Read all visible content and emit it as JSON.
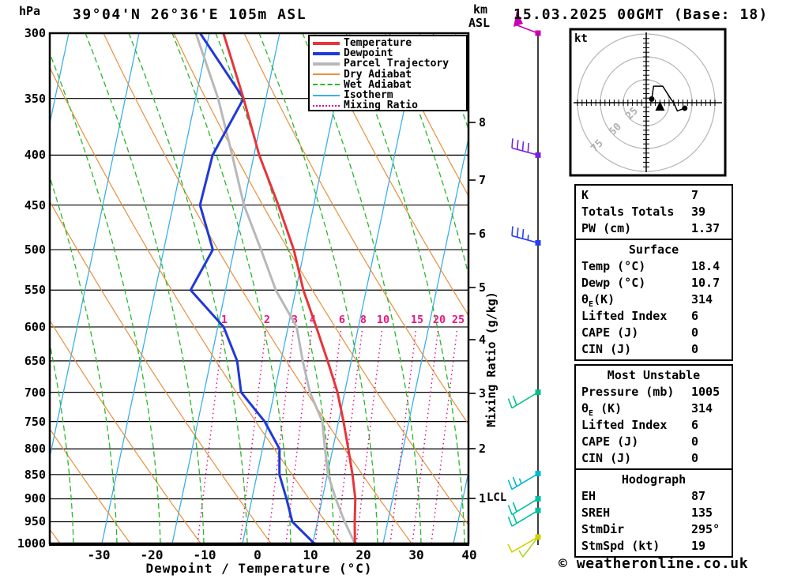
{
  "header": {
    "y_unit": "hPa",
    "title": "39°04'N 26°36'E 105m ASL",
    "datetime": "15.03.2025 00GMT (Base: 18)",
    "km_label": "km",
    "asl_label": "ASL"
  },
  "copyright": "© weatheronline.co.uk",
  "legend": {
    "items": [
      {
        "label": "Temperature",
        "color": "#e8343a",
        "glyph": "solid-thick"
      },
      {
        "label": "Dewpoint",
        "color": "#2038d8",
        "glyph": "solid-thick"
      },
      {
        "label": "Parcel Trajectory",
        "color": "#b8b8b8",
        "glyph": "solid-thick"
      },
      {
        "label": "Dry Adiabat",
        "color": "#e8903c",
        "glyph": "solid-thin"
      },
      {
        "label": "Wet Adiabat",
        "color": "#28b828",
        "glyph": "dashed"
      },
      {
        "label": "Isotherm",
        "color": "#3cb0e8",
        "glyph": "solid-thin"
      },
      {
        "label": "Mixing Ratio",
        "color": "#e00080",
        "glyph": "dotted"
      }
    ]
  },
  "axes": {
    "pressure_ticks": [
      300,
      350,
      400,
      450,
      500,
      550,
      600,
      650,
      700,
      750,
      800,
      850,
      900,
      950,
      1000
    ],
    "temp_ticks": [
      -30,
      -20,
      -10,
      0,
      10,
      20,
      30,
      40
    ],
    "x_label": "Dewpoint / Temperature (°C)",
    "km_ticks": [
      8,
      7,
      6,
      5,
      4,
      3,
      2,
      1
    ],
    "mix_axis_label": "Mixing Ratio (g/kg)",
    "mixing_ratio_values": [
      1,
      2,
      3,
      4,
      6,
      8,
      10,
      15,
      20,
      25
    ],
    "lcl_label": "LCL"
  },
  "chart_data": {
    "type": "line",
    "title": "Skew-T log-P sounding",
    "x_unit": "°C",
    "y_unit": "hPa",
    "y_range": [
      300,
      1000
    ],
    "x_range_at_surface": [
      -40,
      40
    ],
    "lcl_km": 1,
    "series": [
      {
        "name": "Temperature",
        "color": "#e8343a",
        "width": 3,
        "points": [
          [
            300,
            -26.7
          ],
          [
            350,
            -20.3
          ],
          [
            400,
            -15.1
          ],
          [
            450,
            -9.5
          ],
          [
            500,
            -4.8
          ],
          [
            550,
            -1.4
          ],
          [
            600,
            2.5
          ],
          [
            650,
            6.0
          ],
          [
            700,
            9.1
          ],
          [
            750,
            11.4
          ],
          [
            800,
            13.4
          ],
          [
            850,
            15.2
          ],
          [
            900,
            16.7
          ],
          [
            950,
            17.5
          ],
          [
            1000,
            18.4
          ]
        ]
      },
      {
        "name": "Dewpoint",
        "color": "#2038d8",
        "width": 3,
        "points": [
          [
            300,
            -31.1
          ],
          [
            350,
            -20.3
          ],
          [
            400,
            -23.9
          ],
          [
            450,
            -24.3
          ],
          [
            500,
            -20.1
          ],
          [
            550,
            -22.7
          ],
          [
            600,
            -15.0
          ],
          [
            650,
            -11.1
          ],
          [
            700,
            -9.1
          ],
          [
            750,
            -3.5
          ],
          [
            800,
            0.4
          ],
          [
            850,
            1.4
          ],
          [
            900,
            3.7
          ],
          [
            950,
            5.7
          ],
          [
            1000,
            10.7
          ]
        ]
      },
      {
        "name": "Parcel Trajectory",
        "color": "#b8b8b8",
        "width": 3,
        "points": [
          [
            300,
            -31.9
          ],
          [
            350,
            -25.1
          ],
          [
            400,
            -20.2
          ],
          [
            450,
            -16.0
          ],
          [
            500,
            -11.0
          ],
          [
            550,
            -6.6
          ],
          [
            600,
            -1.2
          ],
          [
            650,
            1.3
          ],
          [
            700,
            3.9
          ],
          [
            750,
            7.4
          ],
          [
            800,
            9.0
          ],
          [
            850,
            10.6
          ],
          [
            900,
            13.0
          ],
          [
            950,
            15.6
          ],
          [
            1000,
            18.4
          ]
        ]
      }
    ]
  },
  "wind_barbs": [
    {
      "pressure": 300,
      "type": "flag50",
      "color": "#c800b4"
    },
    {
      "pressure": 400,
      "type": "barb",
      "full": 4,
      "half": 0,
      "below": false,
      "color": "#7820e0"
    },
    {
      "pressure": 492,
      "type": "barb",
      "full": 3,
      "half": 1,
      "below": false,
      "color": "#2840f0"
    },
    {
      "pressure": 700,
      "type": "barb",
      "full": 2,
      "half": 0,
      "below": true,
      "color": "#00c08c"
    },
    {
      "pressure": 848,
      "type": "barb",
      "full": 2,
      "half": 1,
      "below": true,
      "color": "#00b8d0"
    },
    {
      "pressure": 900,
      "type": "barb",
      "full": 2,
      "half": 0,
      "below": true,
      "color": "#00c0a0"
    },
    {
      "pressure": 925,
      "type": "barb",
      "full": 2,
      "half": 0,
      "below": true,
      "color": "#00c0a0"
    },
    {
      "pressure": 985,
      "type": "double",
      "colors": [
        "#d0d000",
        "#a8d820"
      ]
    }
  ],
  "hodograph": {
    "unit_label": "kt",
    "rings_kt": [
      25,
      50,
      75
    ],
    "trace_uv_kt": [
      [
        6,
        4
      ],
      [
        8,
        18
      ],
      [
        18,
        18
      ],
      [
        27,
        4
      ],
      [
        30,
        0
      ],
      [
        34,
        -9
      ],
      [
        42,
        -6
      ]
    ],
    "endpoint_dots_uv_kt": [
      [
        6,
        4
      ],
      [
        42,
        -6
      ]
    ],
    "storm_motion_uv_kt": [
      15,
      -4
    ]
  },
  "info_boxes": [
    {
      "title": null,
      "rows": [
        [
          "K",
          "7"
        ],
        [
          "Totals Totals",
          "39"
        ],
        [
          "PW (cm)",
          "1.37"
        ]
      ]
    },
    {
      "title": "Surface",
      "rows": [
        [
          "Temp (°C)",
          "18.4"
        ],
        [
          "Dewp (°C)",
          "10.7"
        ],
        [
          "θE(K)",
          "314"
        ],
        [
          "Lifted Index",
          "6"
        ],
        [
          "CAPE (J)",
          "0"
        ],
        [
          "CIN (J)",
          "0"
        ]
      ]
    },
    {
      "title": "Most Unstable",
      "rows": [
        [
          "Pressure (mb)",
          "1005"
        ],
        [
          "θE (K)",
          "314"
        ],
        [
          "Lifted Index",
          "6"
        ],
        [
          "CAPE (J)",
          "0"
        ],
        [
          "CIN (J)",
          "0"
        ]
      ]
    },
    {
      "title": "Hodograph",
      "rows": [
        [
          "EH",
          "87"
        ],
        [
          "SREH",
          "135"
        ],
        [
          "StmDir",
          "295°"
        ],
        [
          "StmSpd (kt)",
          "19"
        ]
      ]
    }
  ]
}
